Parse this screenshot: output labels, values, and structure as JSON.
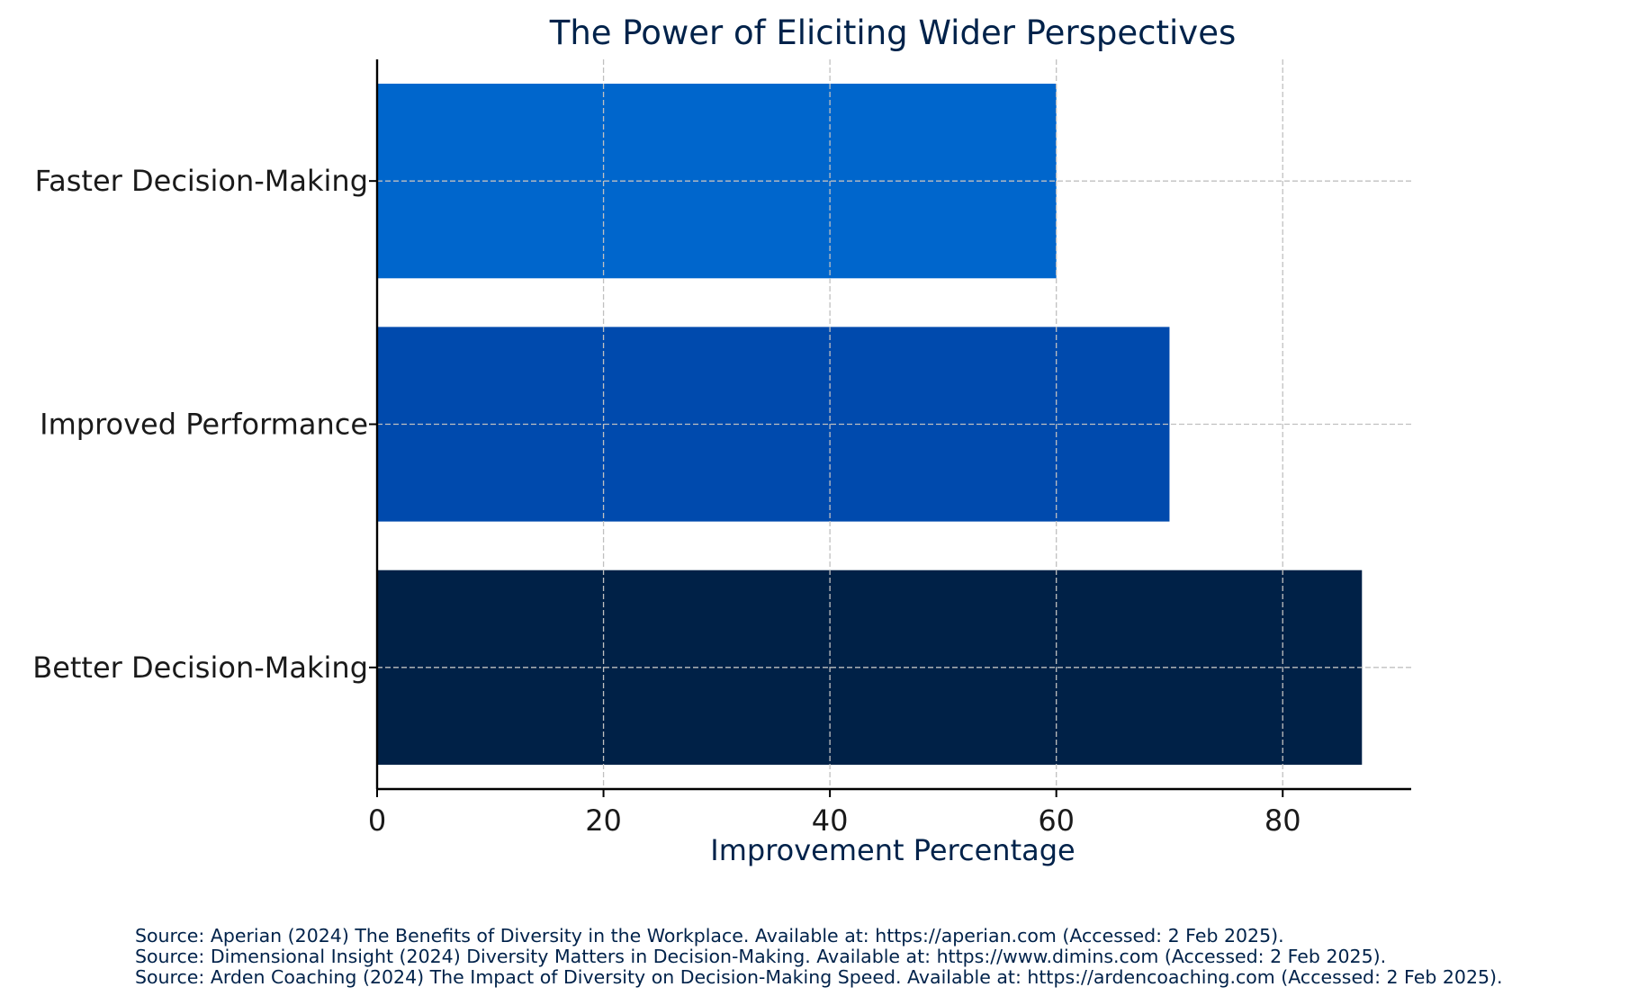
{
  "chart_data": {
    "type": "bar",
    "orientation": "horizontal",
    "title": "The Power of Eliciting Wider Perspectives",
    "xlabel": "Improvement Percentage",
    "ylabel": "",
    "categories": [
      "Better Decision-Making",
      "Improved Performance",
      "Faster Decision-Making"
    ],
    "values": [
      87,
      70,
      60
    ],
    "bar_colors": [
      "#002147",
      "#004aad",
      "#0066cc"
    ],
    "xlim": [
      0,
      91.35
    ],
    "xticks": [
      0,
      20,
      40,
      60,
      80
    ],
    "grid": true,
    "grid_style": "dashed",
    "legend": "none"
  },
  "colors": {
    "title": "#00224a",
    "axis_label": "#00224a",
    "tick_label": "#1a1a1a",
    "axis_line": "#000000",
    "grid": "#c0c0c0"
  },
  "sources": [
    "Source: Aperian (2024) The Benefits of Diversity in the Workplace. Available at: https://aperian.com (Accessed: 2 Feb 2025).",
    "Source: Dimensional Insight (2024) Diversity Matters in Decision-Making. Available at: https://www.dimins.com (Accessed: 2 Feb 2025).",
    "Source: Arden Coaching (2024) The Impact of Diversity on Decision-Making Speed. Available at: https://ardencoaching.com (Accessed: 2 Feb 2025)."
  ]
}
